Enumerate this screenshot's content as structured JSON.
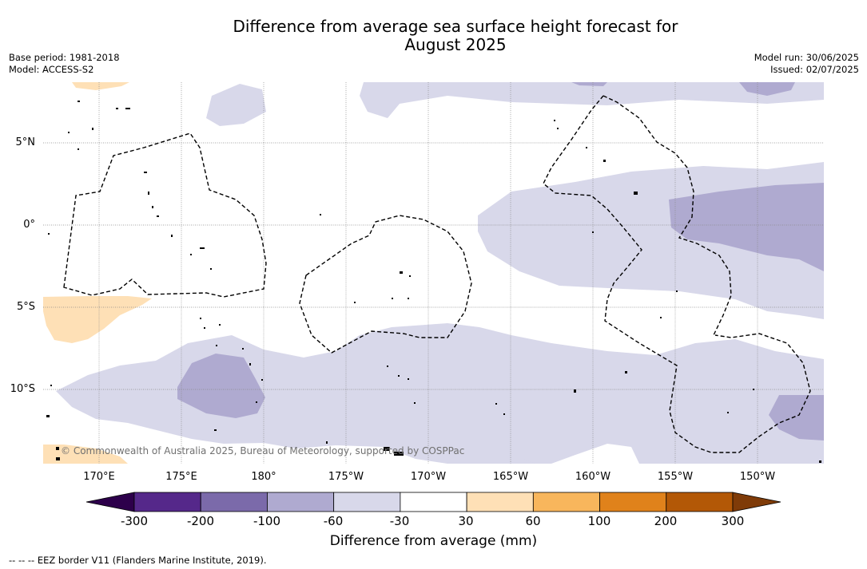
{
  "title_line1": "Difference from average sea surface height forecast for",
  "title_line2": "August 2025",
  "meta_left": {
    "line1": "Base period: 1981-2018",
    "line2": "Model: ACCESS-S2"
  },
  "meta_right": {
    "line1": "Model run: 30/06/2025",
    "line2": "Issued: 02/07/2025"
  },
  "lat_labels": [
    "5°N",
    "0°",
    "5°S",
    "10°S"
  ],
  "lon_labels": [
    "170°E",
    "175°E",
    "180°",
    "175°W",
    "170°W",
    "165°W",
    "160°W",
    "155°W",
    "150°W"
  ],
  "credit": "© Commonwealth of Australia 2025, Bureau of Meteorology, supported by COSPPac",
  "colorbar": {
    "ticks": [
      "-300",
      "-200",
      "-100",
      "-60",
      "-30",
      "30",
      "60",
      "100",
      "200",
      "300"
    ],
    "colors": [
      "#55288a",
      "#7b6aaa",
      "#afaad0",
      "#d8d8ea",
      "#ffffff",
      "#fee0b6",
      "#f8b65c",
      "#e0821b",
      "#b35806"
    ],
    "under_color": "#2d004b",
    "over_color": "#7f3b08",
    "label": "Difference from average (mm)"
  },
  "footer": "-- -- -- EEZ border V11 (Flanders Marine Institute, 2019)."
}
